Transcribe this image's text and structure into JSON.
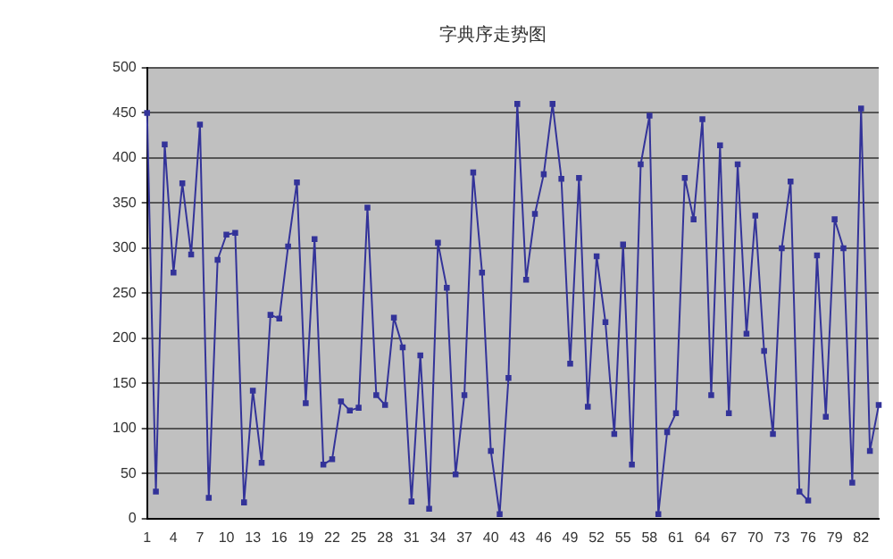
{
  "chart_data": {
    "type": "line",
    "title": "字典序走势图",
    "categories": [
      "1",
      null,
      null,
      "4",
      null,
      null,
      "7",
      null,
      null,
      "10",
      null,
      null,
      "13",
      null,
      null,
      "16",
      null,
      null,
      "19",
      null,
      null,
      "22",
      null,
      null,
      "25",
      null,
      null,
      "28",
      null,
      null,
      "31",
      null,
      null,
      "34",
      null,
      null,
      "37",
      null,
      null,
      "40",
      null,
      null,
      "43",
      null,
      null,
      "46",
      null,
      null,
      "49",
      null,
      null,
      "52",
      null,
      null,
      "55",
      null,
      null,
      "58",
      null,
      null,
      "61",
      null,
      null,
      "64",
      null,
      null,
      "67",
      null,
      null,
      "70",
      null,
      null,
      "73",
      null,
      null,
      "76",
      null,
      null,
      "79",
      null,
      null,
      "82",
      null,
      null
    ],
    "series": [
      {
        "color": "#333399",
        "values": [
          450,
          30,
          415,
          273,
          372,
          293,
          437,
          23,
          287,
          315,
          317,
          18,
          142,
          62,
          226,
          222,
          302,
          373,
          128,
          310,
          60,
          66,
          130,
          120,
          123,
          345,
          137,
          126,
          223,
          190,
          19,
          181,
          11,
          306,
          256,
          49,
          137,
          384,
          273,
          75,
          5,
          156,
          460,
          265,
          338,
          382,
          460,
          377,
          172,
          378,
          124,
          291,
          218,
          94,
          304,
          60,
          393,
          447,
          5,
          96,
          117,
          378,
          332,
          443,
          137,
          414,
          117,
          393,
          205,
          336,
          186,
          94,
          300,
          374,
          30,
          20,
          292,
          113,
          332,
          300,
          40,
          455,
          75,
          126
        ]
      }
    ],
    "ylim": [
      0,
      500
    ],
    "yticks": [
      0,
      50,
      100,
      150,
      200,
      250,
      300,
      350,
      400,
      450,
      500
    ],
    "grid": "y",
    "legend": false,
    "marker": "square",
    "line_style": "solid"
  }
}
